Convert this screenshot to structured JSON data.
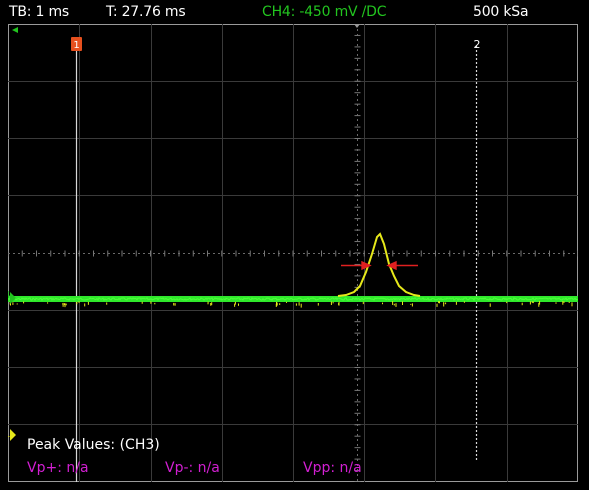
{
  "status_bar": {
    "timebase": "TB: 1 ms",
    "trigger_time": "T: 27.76 ms",
    "channel_info": "CH4: -450 mV /DC",
    "sample_rate": "500 kSa"
  },
  "markers": {
    "cursor_1": "1",
    "cursor_2": "2",
    "channel_4": "4",
    "channel_1": "1"
  },
  "peak_values": {
    "title": "Peak Values: (CH3)",
    "vp_plus": "Vp+: n/a",
    "vp_minus": "Vp-: n/a",
    "vpp": "Vpp: n/a"
  },
  "colors": {
    "channel_4": "#22c41f",
    "trace_yellow": "#e6e81a",
    "trace_green": "#2fe82b",
    "peak_values": "#d21fd2",
    "cursor_1": "#e6501e",
    "grid": "#3a3a3a",
    "measurement_arrows": "#e02020"
  }
}
